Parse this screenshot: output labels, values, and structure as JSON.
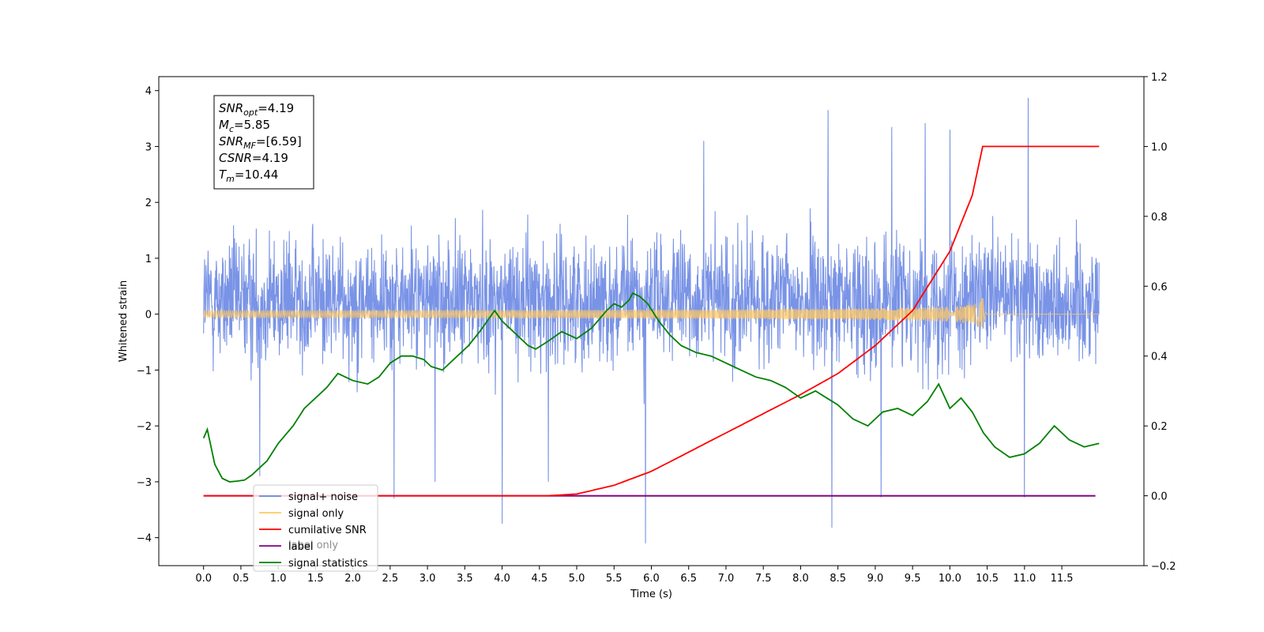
{
  "chart_data": {
    "type": "line",
    "xlabel": "Time (s)",
    "ylabel": "Whitened strain",
    "xlim": [
      -0.6,
      12.6
    ],
    "ylim_left": [
      -4.5,
      4.25
    ],
    "ylim_right": [
      -0.2,
      1.2
    ],
    "x_ticks": [
      0.0,
      0.5,
      1.0,
      1.5,
      2.0,
      2.5,
      3.0,
      3.5,
      4.0,
      4.5,
      5.0,
      5.5,
      6.0,
      6.5,
      7.0,
      7.5,
      8.0,
      8.5,
      9.0,
      9.5,
      10.0,
      10.5,
      11.0,
      11.5
    ],
    "x_tick_labels": [
      "0.0",
      "0.5",
      "1.0",
      "1.5",
      "2.0",
      "2.5",
      "3.0",
      "3.5",
      "4.0",
      "4.5",
      "5.0",
      "5.5",
      "6.0",
      "6.5",
      "7.0",
      "7.5",
      "8.0",
      "8.5",
      "9.0",
      "9.5",
      "10.0",
      "10.5",
      "11.0",
      "11.5"
    ],
    "y_left_ticks": [
      4,
      3,
      2,
      1,
      0,
      -1,
      -2,
      -3,
      -4
    ],
    "y_left_tick_labels": [
      "4",
      "3",
      "2",
      "1",
      "0",
      "−1",
      "−2",
      "−3",
      "−4"
    ],
    "y_right_ticks": [
      1.2,
      1.0,
      0.8,
      0.6,
      0.4,
      0.2,
      0.0,
      -0.2
    ],
    "y_right_tick_labels": [
      "1.2",
      "1.0",
      "0.8",
      "0.6",
      "0.4",
      "0.2",
      "0.0",
      "−0.2"
    ],
    "grid": false,
    "legend_placement": "lower-left",
    "legend": [
      {
        "label": "signal+ noise",
        "color": "#6a87e3"
      },
      {
        "label": "signal only",
        "color": "#ffc864"
      },
      {
        "label": "cumilative SNR",
        "color": "#ff0000"
      },
      {
        "label": "label",
        "color": "#800080"
      },
      {
        "label": "signal statistics",
        "color": "#008000"
      }
    ],
    "legend_ghost_text": "label only",
    "stats_box": [
      {
        "base": "SNR",
        "sub": "opt",
        "value": "=4.19"
      },
      {
        "base": "M",
        "sub": "c",
        "value": "=5.85"
      },
      {
        "base": "SNR",
        "sub": "MF",
        "value": "=[6.59]"
      },
      {
        "base": "CSNR",
        "sub": "",
        "value": "=4.19"
      },
      {
        "base": "T",
        "sub": "m",
        "value": "=10.44"
      }
    ],
    "series": [
      {
        "name": "signal+ noise",
        "axis": "left",
        "color": "#6a87e3",
        "x_range": [
          0.0,
          12.0
        ],
        "envelope": {
          "typical_min": -1.8,
          "typical_max": 2.0
        },
        "spikes": [
          {
            "x": 11.05,
            "y": 3.87
          },
          {
            "x": 8.37,
            "y": 3.65
          },
          {
            "x": 5.92,
            "y": -4.1
          },
          {
            "x": 8.42,
            "y": -3.82
          },
          {
            "x": 4.0,
            "y": -3.75
          },
          {
            "x": 9.22,
            "y": 3.35
          },
          {
            "x": 9.67,
            "y": 3.42
          },
          {
            "x": 10.0,
            "y": 3.3
          },
          {
            "x": 2.55,
            "y": -3.3
          },
          {
            "x": 9.08,
            "y": -3.28
          },
          {
            "x": 11.0,
            "y": -3.28
          },
          {
            "x": 6.7,
            "y": 3.1
          },
          {
            "x": 4.62,
            "y": -3.0
          },
          {
            "x": 3.1,
            "y": -3.0
          },
          {
            "x": 0.75,
            "y": -2.9
          }
        ]
      },
      {
        "name": "signal only",
        "axis": "left",
        "color": "#ffc864",
        "chirp": {
          "start": 0.0,
          "merger": 10.44,
          "end": 12.0,
          "amp_at_merger": 0.42
        }
      },
      {
        "name": "cumilative SNR",
        "axis": "right",
        "color": "#ff0000",
        "x": [
          0.0,
          4.6,
          5.0,
          5.5,
          6.0,
          6.5,
          7.0,
          7.5,
          8.0,
          8.5,
          9.0,
          9.5,
          10.0,
          10.3,
          10.44,
          12.0
        ],
        "y": [
          0.0,
          0.0,
          0.005,
          0.03,
          0.07,
          0.125,
          0.18,
          0.235,
          0.29,
          0.35,
          0.43,
          0.53,
          0.7,
          0.86,
          1.0,
          1.0
        ]
      },
      {
        "name": "label",
        "axis": "right",
        "color": "#800080",
        "x": [
          0.0,
          11.95
        ],
        "y": [
          0.0,
          0.0
        ]
      },
      {
        "name": "signal statistics",
        "axis": "right",
        "color": "#008000",
        "x": [
          0.0,
          0.05,
          0.15,
          0.25,
          0.35,
          0.45,
          0.55,
          0.65,
          0.75,
          0.85,
          1.0,
          1.2,
          1.35,
          1.5,
          1.65,
          1.8,
          2.0,
          2.2,
          2.35,
          2.5,
          2.65,
          2.8,
          2.95,
          3.05,
          3.2,
          3.4,
          3.55,
          3.7,
          3.8,
          3.9,
          4.0,
          4.1,
          4.2,
          4.35,
          4.45,
          4.6,
          4.8,
          5.0,
          5.2,
          5.4,
          5.5,
          5.6,
          5.7,
          5.75,
          5.85,
          5.95,
          6.1,
          6.25,
          6.4,
          6.6,
          6.8,
          7.0,
          7.2,
          7.4,
          7.6,
          7.8,
          8.0,
          8.2,
          8.35,
          8.5,
          8.7,
          8.9,
          9.1,
          9.3,
          9.5,
          9.7,
          9.85,
          10.0,
          10.15,
          10.3,
          10.45,
          10.6,
          10.8,
          11.0,
          11.2,
          11.4,
          11.6,
          11.8,
          12.0
        ],
        "y": [
          0.165,
          0.19,
          0.09,
          0.05,
          0.04,
          0.042,
          0.045,
          0.06,
          0.08,
          0.1,
          0.15,
          0.2,
          0.25,
          0.28,
          0.31,
          0.35,
          0.33,
          0.32,
          0.34,
          0.38,
          0.4,
          0.4,
          0.39,
          0.37,
          0.36,
          0.4,
          0.43,
          0.47,
          0.5,
          0.53,
          0.5,
          0.48,
          0.46,
          0.43,
          0.42,
          0.44,
          0.47,
          0.45,
          0.48,
          0.53,
          0.55,
          0.54,
          0.56,
          0.58,
          0.57,
          0.55,
          0.5,
          0.46,
          0.43,
          0.41,
          0.4,
          0.38,
          0.36,
          0.34,
          0.33,
          0.31,
          0.28,
          0.3,
          0.28,
          0.26,
          0.22,
          0.2,
          0.24,
          0.25,
          0.23,
          0.27,
          0.32,
          0.25,
          0.28,
          0.24,
          0.18,
          0.14,
          0.11,
          0.12,
          0.15,
          0.2,
          0.16,
          0.14,
          0.15
        ]
      }
    ]
  }
}
